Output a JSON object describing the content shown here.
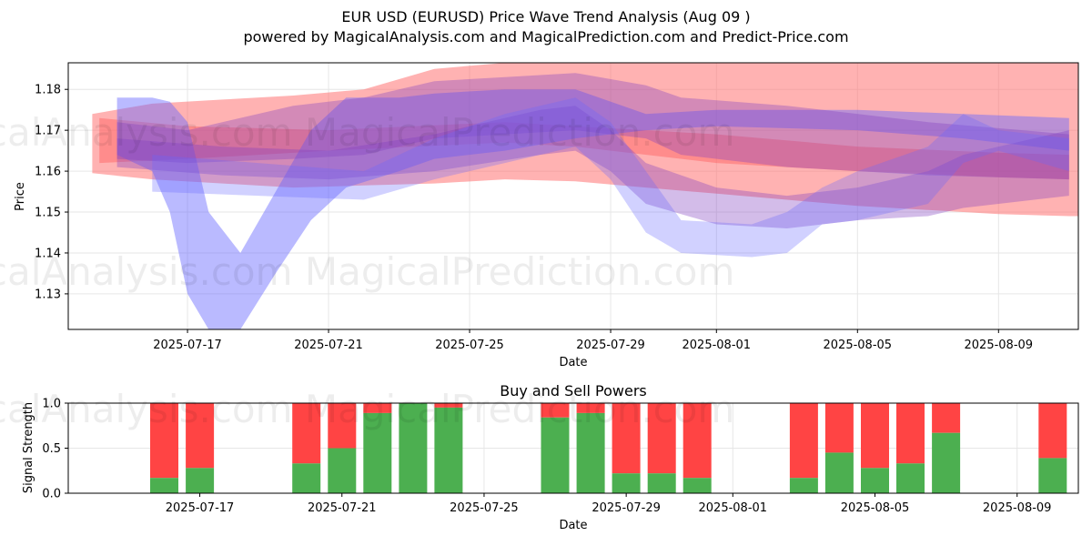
{
  "header": {
    "title": "EUR USD (EURUSD) Price Wave Trend Analysis (Aug 09 )",
    "subtitle": "powered by MagicalAnalysis.com and MagicalPrediction.com and Predict-Price.com"
  },
  "watermarks": {
    "top_row1": "MagicalAnalysis.com   MagicalPrediction.com",
    "top_row2": "MagicalAnalysis.com   MagicalPrediction.com",
    "bottom_row": "MagicalAnalysis.com   MagicalPrediction.com"
  },
  "colors": {
    "red_band": "#ff6666",
    "blue_band": "#6666ff",
    "purple_band": "#8040c0",
    "buy": "#4caf50",
    "sell": "#ff4444"
  },
  "chart_data": [
    {
      "type": "area",
      "title": "",
      "xlabel": "Date",
      "ylabel": "Price",
      "x_start": "2025-07-14",
      "ylim": [
        1.1213,
        1.1865
      ],
      "x_ticks": [
        "2025-07-17",
        "2025-07-21",
        "2025-07-25",
        "2025-07-29",
        "2025-08-01",
        "2025-08-05",
        "2025-08-09"
      ],
      "y_ticks": [
        1.13,
        1.14,
        1.15,
        1.16,
        1.17,
        1.18
      ],
      "grid": true,
      "bands": [
        {
          "color": "red",
          "opacity": 0.5,
          "points": [
            [
              0.3,
              1.1595,
              1.174
            ],
            [
              2,
              1.158,
              1.1765
            ],
            [
              4,
              1.157,
              1.1775
            ],
            [
              6,
              1.156,
              1.1785
            ],
            [
              8,
              1.1565,
              1.18
            ],
            [
              10,
              1.157,
              1.185
            ],
            [
              12,
              1.158,
              1.1865
            ],
            [
              14,
              1.1575,
              1.1865
            ],
            [
              16,
              1.156,
              1.1865
            ],
            [
              18,
              1.1545,
              1.1865
            ],
            [
              20,
              1.153,
              1.1865
            ],
            [
              22,
              1.1515,
              1.1865
            ],
            [
              24,
              1.1505,
              1.1865
            ],
            [
              26,
              1.1495,
              1.1865
            ],
            [
              28,
              1.149,
              1.1865
            ],
            [
              28.3,
              1.149,
              1.1865
            ]
          ]
        },
        {
          "color": "red",
          "opacity": 0.5,
          "points": [
            [
              0.5,
              1.162,
              1.173
            ],
            [
              3,
              1.163,
              1.171
            ],
            [
              7,
              1.165,
              1.17
            ],
            [
              12,
              1.167,
              1.172
            ],
            [
              14,
              1.166,
              1.171
            ],
            [
              18,
              1.162,
              1.169
            ],
            [
              22,
              1.16,
              1.166
            ],
            [
              26,
              1.1585,
              1.1645
            ],
            [
              28,
              1.158,
              1.164
            ]
          ]
        },
        {
          "color": "blue",
          "opacity": 0.45,
          "points": [
            [
              1,
              1.164,
              1.178
            ],
            [
              2,
              1.16,
              1.178
            ],
            [
              2.5,
              1.15,
              1.177
            ],
            [
              3,
              1.13,
              1.172
            ],
            [
              3.6,
              1.1213,
              1.15
            ],
            [
              4.5,
              1.1213,
              1.14
            ],
            [
              5.5,
              1.135,
              1.155
            ],
            [
              6.5,
              1.148,
              1.17
            ],
            [
              7.5,
              1.156,
              1.178
            ],
            [
              9,
              1.16,
              1.178
            ],
            [
              10,
              1.163,
              1.179
            ],
            [
              12,
              1.165,
              1.18
            ],
            [
              14,
              1.168,
              1.18
            ],
            [
              16,
              1.17,
              1.174
            ],
            [
              18,
              1.171,
              1.175
            ],
            [
              22,
              1.17,
              1.175
            ],
            [
              25,
              1.168,
              1.174
            ],
            [
              28,
              1.165,
              1.173
            ]
          ]
        },
        {
          "color": "purple",
          "opacity": 0.35,
          "points": [
            [
              1,
              1.161,
              1.168
            ],
            [
              4,
              1.159,
              1.166
            ],
            [
              7,
              1.158,
              1.165
            ],
            [
              10,
              1.16,
              1.169
            ],
            [
              13,
              1.164,
              1.175
            ],
            [
              14,
              1.165,
              1.176
            ],
            [
              15,
              1.16,
              1.17
            ],
            [
              16,
              1.152,
              1.162
            ],
            [
              18,
              1.147,
              1.156
            ],
            [
              20,
              1.146,
              1.154
            ],
            [
              22,
              1.148,
              1.156
            ],
            [
              24,
              1.149,
              1.16
            ],
            [
              25,
              1.151,
              1.164
            ],
            [
              26,
              1.152,
              1.166
            ],
            [
              28,
              1.154,
              1.17
            ]
          ]
        },
        {
          "color": "purple",
          "opacity": 0.35,
          "points": [
            [
              1,
              1.163,
              1.172
            ],
            [
              3,
              1.162,
              1.17
            ],
            [
              6,
              1.163,
              1.176
            ],
            [
              8,
              1.164,
              1.178
            ],
            [
              10,
              1.168,
              1.182
            ],
            [
              12,
              1.169,
              1.183
            ],
            [
              14,
              1.17,
              1.184
            ],
            [
              16,
              1.168,
              1.181
            ],
            [
              17,
              1.164,
              1.178
            ],
            [
              20,
              1.161,
              1.176
            ],
            [
              24,
              1.159,
              1.172
            ],
            [
              28,
              1.158,
              1.169
            ]
          ]
        },
        {
          "color": "blue",
          "opacity": 0.3,
          "points": [
            [
              2,
              1.155,
              1.164
            ],
            [
              5,
              1.154,
              1.162
            ],
            [
              8,
              1.153,
              1.16
            ],
            [
              10,
              1.158,
              1.168
            ],
            [
              12,
              1.162,
              1.174
            ],
            [
              14,
              1.166,
              1.178
            ],
            [
              15,
              1.158,
              1.172
            ],
            [
              16,
              1.145,
              1.16
            ],
            [
              17,
              1.14,
              1.148
            ],
            [
              19,
              1.139,
              1.147
            ],
            [
              20,
              1.14,
              1.15
            ],
            [
              21,
              1.147,
              1.156
            ],
            [
              22,
              1.148,
              1.16
            ],
            [
              24,
              1.152,
              1.166
            ],
            [
              25,
              1.162,
              1.174
            ],
            [
              26,
              1.165,
              1.17
            ],
            [
              28,
              1.16,
              1.168
            ]
          ]
        }
      ]
    },
    {
      "type": "bar",
      "title": "Buy and Sell Powers",
      "xlabel": "Date",
      "ylabel": "Signal Strength",
      "x_start": "2025-07-14",
      "ylim": [
        0,
        1.0
      ],
      "x_ticks": [
        "2025-07-17",
        "2025-07-21",
        "2025-07-25",
        "2025-07-29",
        "2025-08-01",
        "2025-08-05",
        "2025-08-09"
      ],
      "y_ticks": [
        "0.0",
        "0.5",
        "1.0"
      ],
      "grid": true,
      "series": [
        {
          "name": "",
          "values": []
        }
      ],
      "bars": [
        {
          "date": "2025-07-16",
          "buy": 0.17
        },
        {
          "date": "2025-07-17",
          "buy": 0.28
        },
        {
          "date": "2025-07-20",
          "buy": 0.33
        },
        {
          "date": "2025-07-21",
          "buy": 0.5
        },
        {
          "date": "2025-07-22",
          "buy": 0.89
        },
        {
          "date": "2025-07-23",
          "buy": 1.0
        },
        {
          "date": "2025-07-24",
          "buy": 0.95
        },
        {
          "date": "2025-07-27",
          "buy": 0.84
        },
        {
          "date": "2025-07-28",
          "buy": 0.89
        },
        {
          "date": "2025-07-29",
          "buy": 0.22
        },
        {
          "date": "2025-07-30",
          "buy": 0.22
        },
        {
          "date": "2025-07-31",
          "buy": 0.17
        },
        {
          "date": "2025-08-03",
          "buy": 0.17
        },
        {
          "date": "2025-08-04",
          "buy": 0.45
        },
        {
          "date": "2025-08-05",
          "buy": 0.28
        },
        {
          "date": "2025-08-06",
          "buy": 0.33
        },
        {
          "date": "2025-08-07",
          "buy": 0.67
        },
        {
          "date": "2025-08-10",
          "buy": 0.39
        }
      ]
    }
  ]
}
